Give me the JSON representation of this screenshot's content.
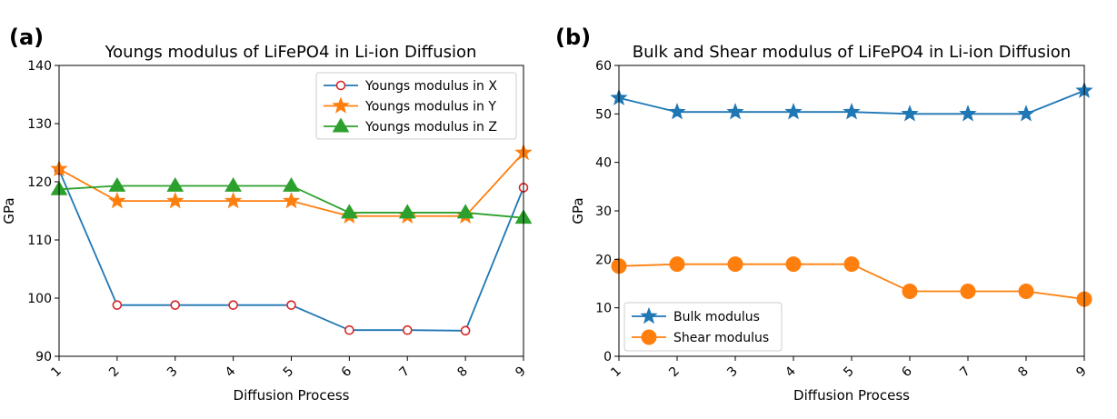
{
  "chart_data": [
    {
      "panel_label": "(a)",
      "type": "line",
      "title": "Youngs modulus of LiFePO4 in Li-ion Diffusion",
      "xlabel": "Diffusion Process",
      "ylabel": "GPa",
      "x": [
        1,
        2,
        3,
        4,
        5,
        6,
        7,
        8,
        9
      ],
      "xlim": [
        1,
        9
      ],
      "ylim": [
        90,
        140
      ],
      "yticks": [
        90,
        100,
        110,
        120,
        130,
        140
      ],
      "grid": false,
      "legend_position": "upper right",
      "series": [
        {
          "name": "Youngs modulus in X",
          "values": [
            122.0,
            98.8,
            98.8,
            98.8,
            98.8,
            94.5,
            94.5,
            94.4,
            119.0
          ],
          "color": "#1f77b4",
          "marker": "open-circle",
          "marker_edge": "#d62728"
        },
        {
          "name": "Youngs modulus in Y",
          "values": [
            122.2,
            116.7,
            116.7,
            116.7,
            116.7,
            114.1,
            114.1,
            114.1,
            125.0
          ],
          "color": "#ff7f0e",
          "marker": "star"
        },
        {
          "name": "Youngs modulus in Z",
          "values": [
            118.7,
            119.3,
            119.3,
            119.3,
            119.3,
            114.7,
            114.7,
            114.7,
            113.8
          ],
          "color": "#2ca02c",
          "marker": "triangle"
        }
      ]
    },
    {
      "panel_label": "(b)",
      "type": "line",
      "title": "Bulk and Shear modulus of LiFePO4 in Li-ion Diffusion",
      "xlabel": "Diffusion Process",
      "ylabel": "GPa",
      "x": [
        1,
        2,
        3,
        4,
        5,
        6,
        7,
        8,
        9
      ],
      "xlim": [
        1,
        9
      ],
      "ylim": [
        0,
        60
      ],
      "yticks": [
        0,
        10,
        20,
        30,
        40,
        50,
        60
      ],
      "grid": false,
      "legend_position": "lower left",
      "series": [
        {
          "name": "Bulk modulus",
          "values": [
            53.3,
            50.4,
            50.4,
            50.4,
            50.4,
            50.0,
            50.0,
            50.0,
            54.8
          ],
          "color": "#1f77b4",
          "marker": "star"
        },
        {
          "name": "Shear modulus",
          "values": [
            18.6,
            19.0,
            19.0,
            19.0,
            19.0,
            13.4,
            13.4,
            13.4,
            11.8
          ],
          "color": "#ff7f0e",
          "marker": "circle"
        }
      ]
    }
  ]
}
